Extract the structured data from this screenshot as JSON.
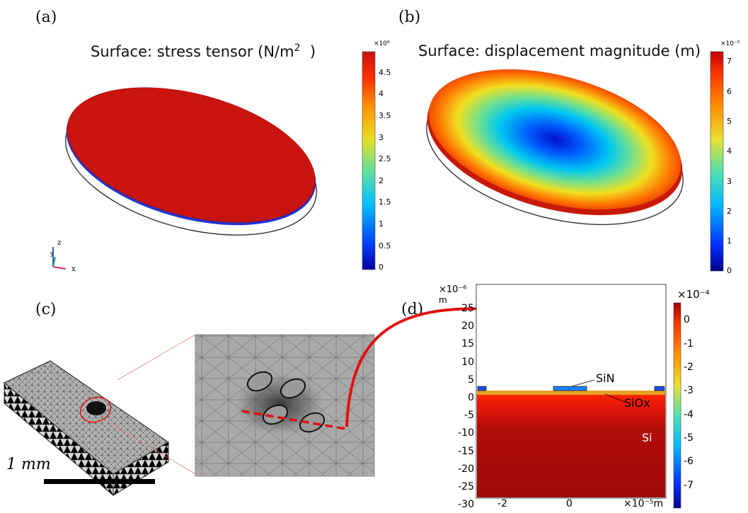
{
  "panels": {
    "a": {
      "label": "(a)",
      "title": "Surface: stress tensor (N/m",
      "title_sup": "2",
      "title_end": ")",
      "cb_exponent": "×10⁸",
      "cb_ticks": [
        "4.5",
        "4",
        "3.5",
        "3",
        "2.5",
        "2",
        "1.5",
        "1",
        "0.5",
        "0"
      ],
      "axes": {
        "z": "z",
        "y": "y",
        "x": "x"
      }
    },
    "b": {
      "label": "(b)",
      "title": "Surface: displacement magnitude (m)",
      "cb_exponent": "×10⁻⁵",
      "cb_ticks": [
        "7",
        "6",
        "5",
        "4",
        "3",
        "2",
        "1",
        "0"
      ]
    },
    "c": {
      "label": "(c)",
      "scale_label": "1 mm"
    },
    "d": {
      "label": "(d)",
      "y_exponent": "×10⁻⁶",
      "y_unit": "m",
      "y_ticks": [
        "25",
        "20",
        "15",
        "10",
        "5",
        "0",
        "-5",
        "-10",
        "-15",
        "-20",
        "-25",
        "-30"
      ],
      "x_ticks": [
        "-2",
        "0"
      ],
      "x_exponent": "×10⁻⁵m",
      "cb_exponent": "×10⁻⁴",
      "cb_ticks": [
        "0",
        "-1",
        "-2",
        "-3",
        "-4",
        "-5",
        "-6",
        "-7"
      ],
      "annotations": {
        "sin": "SiN",
        "siox": "SiOx",
        "si": "Si"
      }
    }
  },
  "colors": {
    "stress_red": "#c8130f",
    "substrate_red": "#b01008",
    "arrow_red": "#e01010",
    "mesh_gray": "#a9a9a9"
  }
}
